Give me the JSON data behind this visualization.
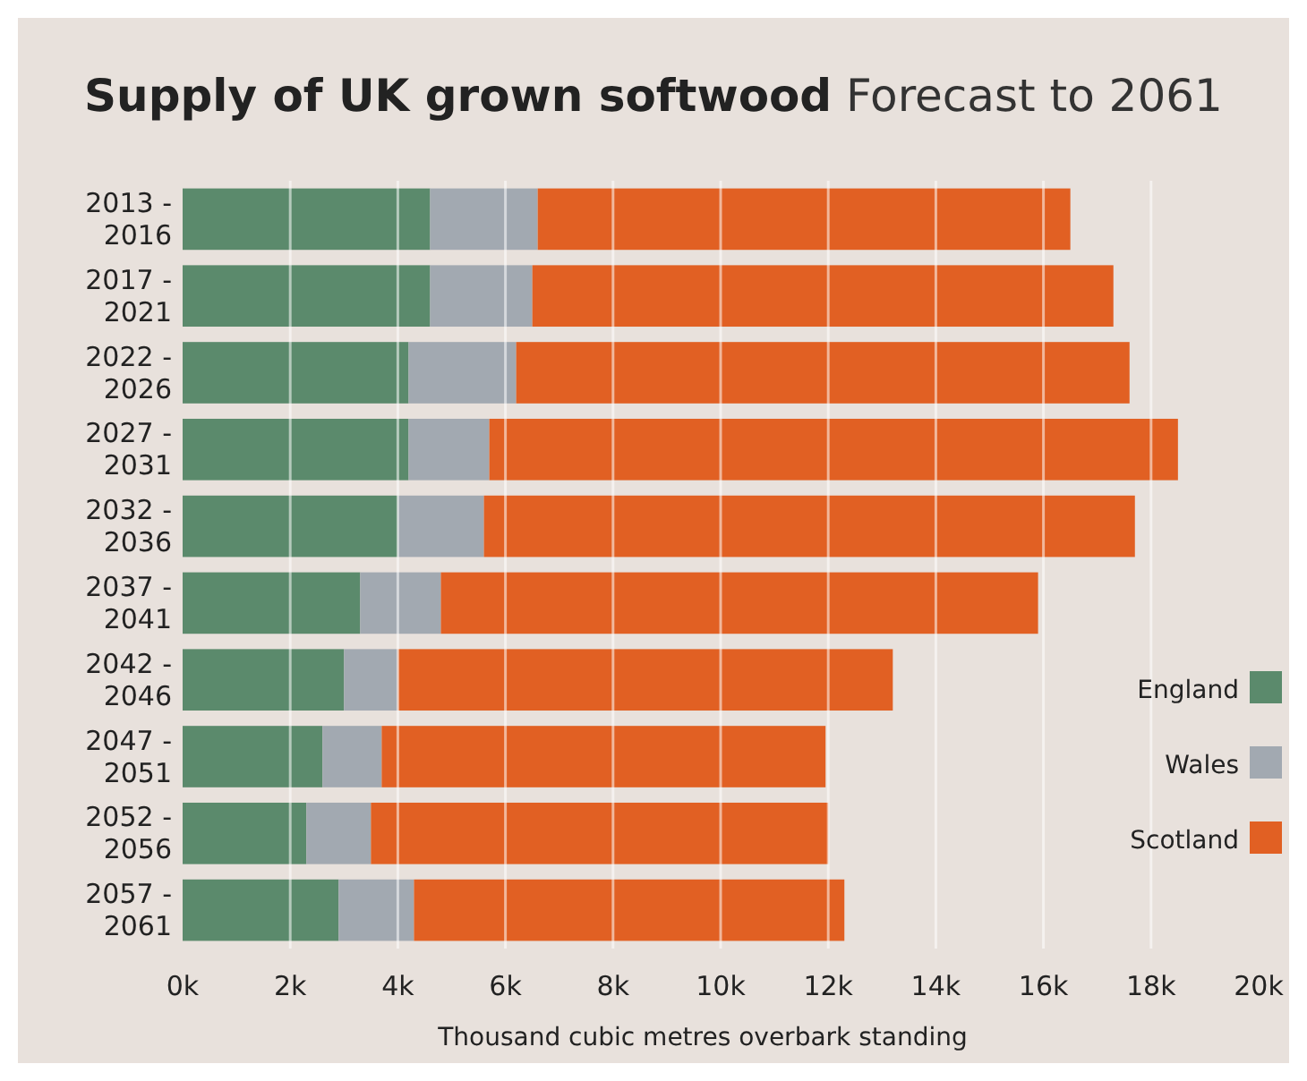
{
  "chart_data": {
    "type": "bar",
    "orientation": "horizontal",
    "stacked": true,
    "title": "Supply of UK grown softwood",
    "subtitle": "Forecast to 2061",
    "xlabel": "Thousand cubic metres overbark standing",
    "categories": [
      "2013 - 2016",
      "2017 - 2021",
      "2022 - 2026",
      "2027 - 2031",
      "2032 - 2036",
      "2037 - 2041",
      "2042 - 2046",
      "2047 - 2051",
      "2052 - 2056",
      "2057 - 2061"
    ],
    "series": [
      {
        "name": "England",
        "color": "#5b8a6c",
        "values": [
          4.6,
          4.6,
          4.2,
          4.2,
          4.0,
          3.3,
          3.0,
          2.6,
          2.3,
          2.9
        ]
      },
      {
        "name": "Wales",
        "color": "#a2a9b1",
        "values": [
          2.0,
          1.9,
          2.0,
          1.5,
          1.6,
          1.5,
          1.0,
          1.1,
          1.2,
          1.4
        ]
      },
      {
        "name": "Scotland",
        "color": "#e16023",
        "values": [
          9.9,
          10.8,
          11.4,
          12.8,
          12.1,
          11.1,
          9.2,
          8.25,
          8.5,
          8.0
        ]
      }
    ],
    "xlim": [
      0,
      20
    ],
    "xticks": [
      {
        "value": 0,
        "label": "0k"
      },
      {
        "value": 2,
        "label": "2k"
      },
      {
        "value": 4,
        "label": "4k"
      },
      {
        "value": 6,
        "label": "6k"
      },
      {
        "value": 8,
        "label": "8k"
      },
      {
        "value": 10,
        "label": "10k"
      },
      {
        "value": 12,
        "label": "12k"
      },
      {
        "value": 14,
        "label": "14k"
      },
      {
        "value": 16,
        "label": "16k"
      },
      {
        "value": 18,
        "label": "18k"
      },
      {
        "value": 20,
        "label": "20k"
      }
    ],
    "grid": "x",
    "legend": "bottom right"
  }
}
